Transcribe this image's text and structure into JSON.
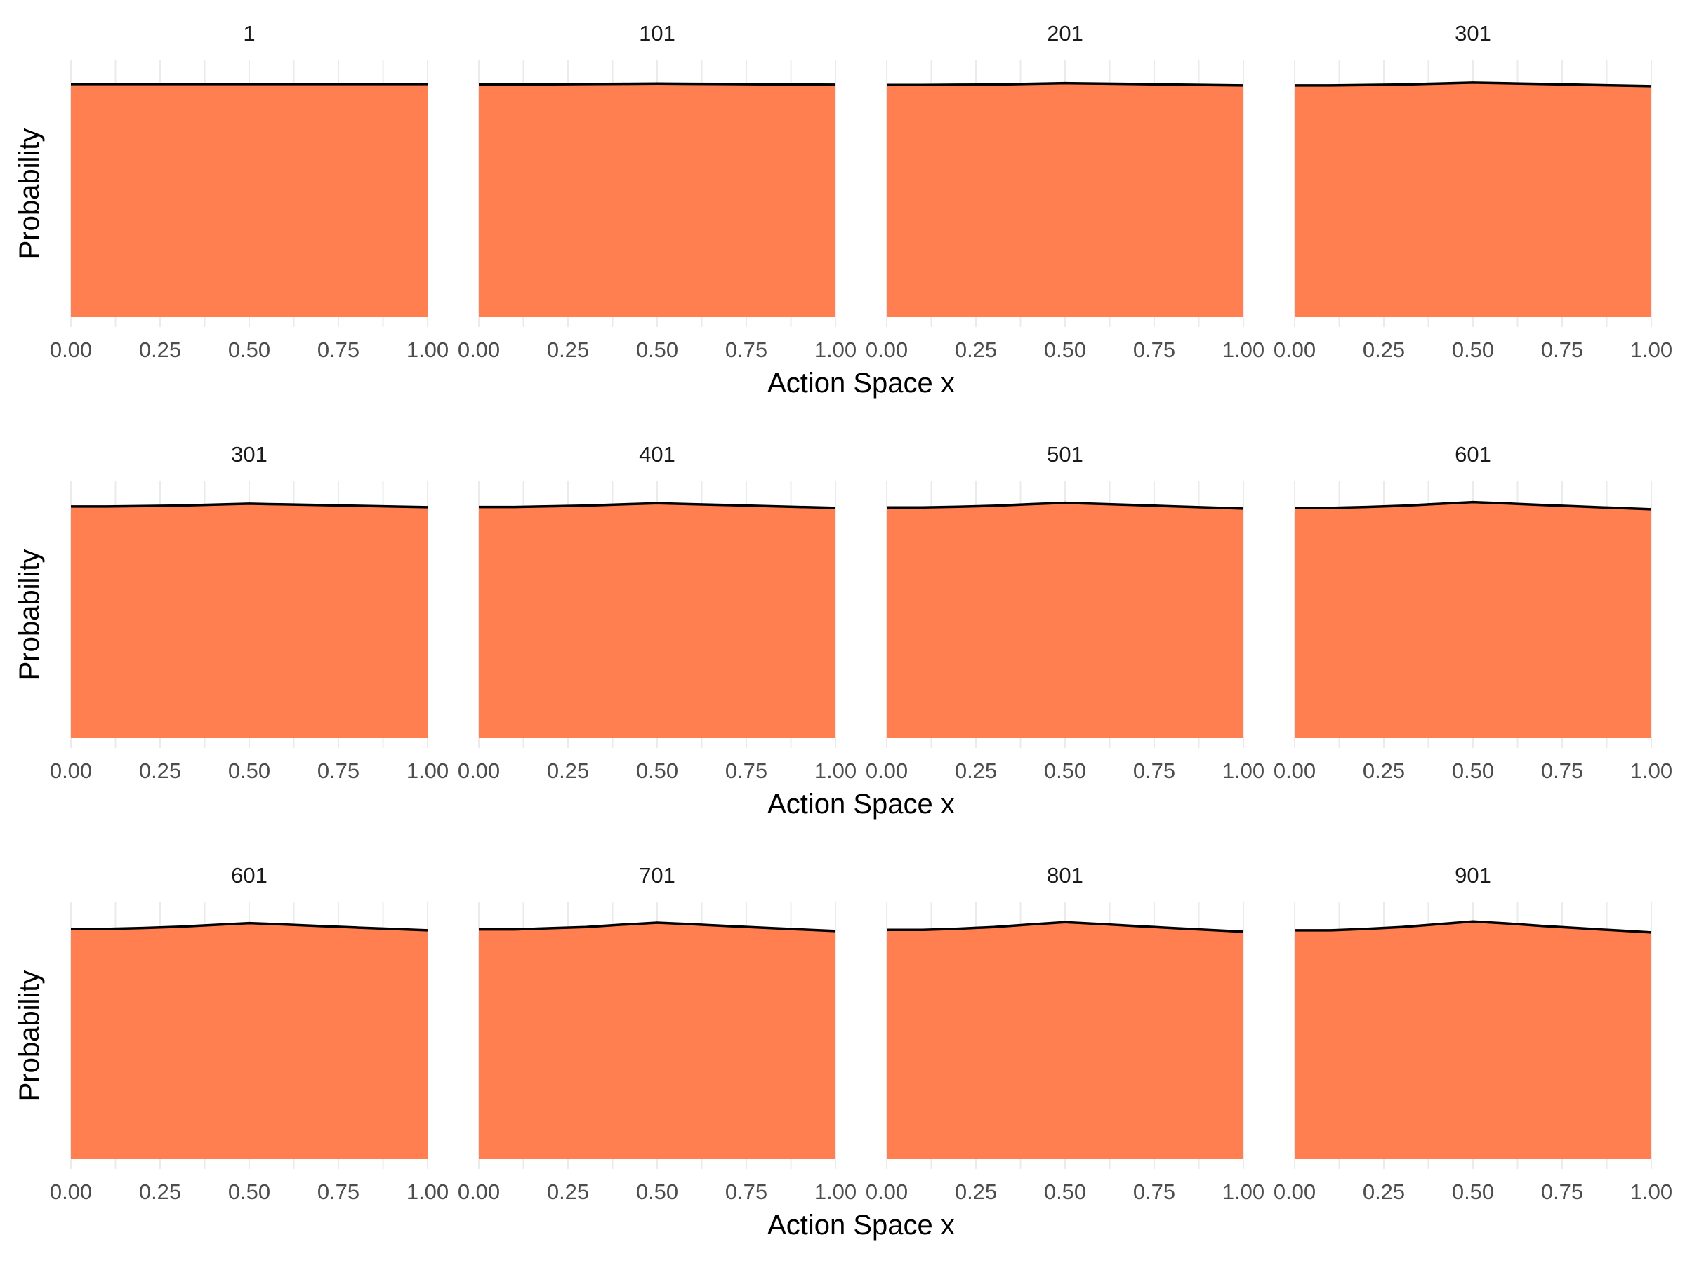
{
  "chart_data": [
    {
      "type": "area",
      "xlabel": "Action Space x",
      "ylabel": "Probability",
      "x_ticks": [
        "0.00",
        "0.25",
        "0.50",
        "0.75",
        "1.00"
      ],
      "xlim": [
        0,
        1
      ],
      "grid": true,
      "fill_color": "#FF7F50",
      "line_color": "#000000",
      "x": [
        0,
        0.1,
        0.2,
        0.3,
        0.4,
        0.5,
        0.6,
        0.7,
        0.8,
        0.9,
        1.0
      ],
      "panels": [
        {
          "title": "1",
          "values": [
            1.0,
            1.0,
            1.0,
            1.0,
            1.0,
            1.0,
            1.0,
            1.0,
            1.0,
            1.0,
            1.0
          ]
        },
        {
          "title": "101",
          "values": [
            0.998,
            0.998,
            0.999,
            1.0,
            1.001,
            1.002,
            1.001,
            1.0,
            0.999,
            0.998,
            0.997
          ]
        },
        {
          "title": "201",
          "values": [
            0.996,
            0.996,
            0.997,
            0.998,
            1.001,
            1.004,
            1.002,
            1.0,
            0.998,
            0.996,
            0.994
          ]
        },
        {
          "title": "301",
          "values": [
            0.994,
            0.994,
            0.996,
            0.998,
            1.002,
            1.006,
            1.003,
            1.0,
            0.997,
            0.994,
            0.991
          ]
        }
      ]
    },
    {
      "type": "area",
      "xlabel": "Action Space x",
      "ylabel": "Probability",
      "x_ticks": [
        "0.00",
        "0.25",
        "0.50",
        "0.75",
        "1.00"
      ],
      "xlim": [
        0,
        1
      ],
      "grid": true,
      "fill_color": "#FF7F50",
      "line_color": "#000000",
      "x": [
        0,
        0.1,
        0.2,
        0.3,
        0.4,
        0.5,
        0.6,
        0.7,
        0.8,
        0.9,
        1.0
      ],
      "panels": [
        {
          "title": "301",
          "values": [
            0.994,
            0.994,
            0.996,
            0.998,
            1.002,
            1.006,
            1.003,
            1.0,
            0.997,
            0.994,
            0.991
          ]
        },
        {
          "title": "401",
          "values": [
            0.992,
            0.992,
            0.995,
            0.998,
            1.003,
            1.008,
            1.004,
            1.0,
            0.996,
            0.992,
            0.988
          ]
        },
        {
          "title": "501",
          "values": [
            0.99,
            0.99,
            0.993,
            0.997,
            1.004,
            1.01,
            1.005,
            1.0,
            0.995,
            0.99,
            0.985
          ]
        },
        {
          "title": "601",
          "values": [
            0.988,
            0.988,
            0.992,
            0.997,
            1.005,
            1.013,
            1.007,
            1.0,
            0.994,
            0.988,
            0.982
          ]
        }
      ]
    },
    {
      "type": "area",
      "xlabel": "Action Space x",
      "ylabel": "Probability",
      "x_ticks": [
        "0.00",
        "0.25",
        "0.50",
        "0.75",
        "1.00"
      ],
      "xlim": [
        0,
        1
      ],
      "grid": true,
      "fill_color": "#FF7F50",
      "line_color": "#000000",
      "x": [
        0,
        0.1,
        0.2,
        0.3,
        0.4,
        0.5,
        0.6,
        0.7,
        0.8,
        0.9,
        1.0
      ],
      "panels": [
        {
          "title": "601",
          "values": [
            0.988,
            0.988,
            0.992,
            0.997,
            1.005,
            1.013,
            1.007,
            1.0,
            0.994,
            0.988,
            0.982
          ]
        },
        {
          "title": "701",
          "values": [
            0.986,
            0.986,
            0.991,
            0.996,
            1.006,
            1.015,
            1.008,
            1.0,
            0.993,
            0.986,
            0.979
          ]
        },
        {
          "title": "801",
          "values": [
            0.984,
            0.984,
            0.989,
            0.996,
            1.007,
            1.017,
            1.009,
            1.0,
            0.992,
            0.984,
            0.976
          ]
        },
        {
          "title": "901",
          "values": [
            0.982,
            0.982,
            0.988,
            0.996,
            1.008,
            1.02,
            1.011,
            1.0,
            0.991,
            0.982,
            0.973
          ]
        }
      ]
    }
  ]
}
